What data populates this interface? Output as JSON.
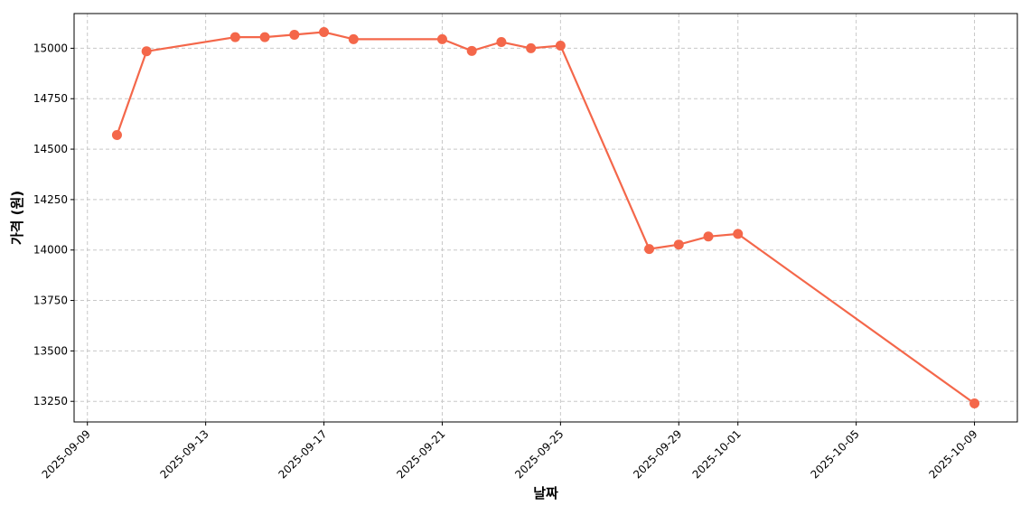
{
  "chart_data": {
    "type": "line",
    "xlabel": "날짜",
    "ylabel": "가격 (원)",
    "x": [
      "2025-09-10",
      "2025-09-11",
      "2025-09-14",
      "2025-09-15",
      "2025-09-16",
      "2025-09-17",
      "2025-09-18",
      "2025-09-21",
      "2025-09-22",
      "2025-09-23",
      "2025-09-24",
      "2025-09-25",
      "2025-09-28",
      "2025-09-29",
      "2025-09-30",
      "2025-10-01",
      "2025-10-09"
    ],
    "values": [
      14570,
      14985,
      15055,
      15055,
      15067,
      15080,
      15045,
      15045,
      14987,
      15031,
      15000,
      15013,
      14005,
      14027,
      14067,
      14080,
      13240
    ],
    "color": "#f4674a",
    "xlim": [
      "2025-09-08T13:12",
      "2025-10-10T10:48"
    ],
    "xticks": [
      "2025-09-09",
      "2025-09-13",
      "2025-09-17",
      "2025-09-21",
      "2025-09-25",
      "2025-09-29",
      "2025-10-01",
      "2025-10-05",
      "2025-10-09"
    ],
    "ylim": [
      13148,
      15172
    ],
    "yticks": [
      13250,
      13500,
      13750,
      14000,
      14250,
      14500,
      14750,
      15000
    ],
    "grid": true
  }
}
